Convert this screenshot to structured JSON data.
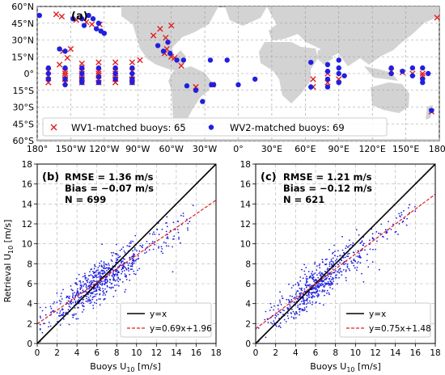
{
  "figure": {
    "panel_a_label": "(a)",
    "panel_b_label": "(b)",
    "panel_c_label": "(c)",
    "ylabel_scatter": "Retrieval U",
    "ylabel_sub": "10",
    "ylabel_unit": " [m/s]",
    "xlabel_scatter": "Buoys U",
    "xlabel_sub": "10",
    "xlabel_unit": " [m/s]"
  },
  "chart_data": [
    {
      "type": "scatter",
      "panel": "(a)",
      "map": true,
      "xlim": [
        -180,
        180
      ],
      "ylim": [
        -60,
        60
      ],
      "x_ticks": [
        "180°",
        "150°W",
        "120°W",
        "90°W",
        "60°W",
        "30°W",
        "0°",
        "30°E",
        "60°E",
        "90°E",
        "120°E",
        "150°E",
        "180°"
      ],
      "y_ticks": [
        "60°N",
        "45°N",
        "30°N",
        "15°N",
        "0°",
        "15°S",
        "30°S",
        "45°S",
        "60°S"
      ],
      "grid": true,
      "legend_position": "bottom",
      "series": [
        {
          "name": "WV1-matched buoys: 65",
          "marker": "x",
          "color": "#e02020",
          "points": [
            [
              -163,
              53
            ],
            [
              -158,
              51
            ],
            [
              -145,
              48
            ],
            [
              -136,
              46
            ],
            [
              -150,
              22
            ],
            [
              -153,
              14
            ],
            [
              -131,
              44
            ],
            [
              -124,
              44
            ],
            [
              -60,
              43
            ],
            [
              -70,
              40
            ],
            [
              -76,
              34
            ],
            [
              -65,
              32
            ],
            [
              -157,
              20
            ],
            [
              -160,
              8
            ],
            [
              -140,
              9
            ],
            [
              -125,
              10
            ],
            [
              -110,
              10
            ],
            [
              -95,
              10
            ],
            [
              -88,
              12
            ],
            [
              -170,
              2
            ],
            [
              -155,
              2
            ],
            [
              -140,
              2
            ],
            [
              -125,
              2
            ],
            [
              -110,
              2
            ],
            [
              -95,
              2
            ],
            [
              -170,
              -2
            ],
            [
              -155,
              -2
            ],
            [
              -140,
              -2
            ],
            [
              -125,
              -2
            ],
            [
              -110,
              -2
            ],
            [
              -95,
              -2
            ],
            [
              -155,
              -5
            ],
            [
              -140,
              -5
            ],
            [
              -125,
              -5
            ],
            [
              -110,
              -5
            ],
            [
              -95,
              -5
            ],
            [
              -140,
              -8
            ],
            [
              -125,
              -8
            ],
            [
              -110,
              -8
            ],
            [
              -95,
              -8
            ],
            [
              -155,
              -8
            ],
            [
              -170,
              -8
            ],
            [
              -155,
              0
            ],
            [
              -140,
              0
            ],
            [
              -125,
              0
            ],
            [
              -110,
              0
            ],
            [
              -66,
              18
            ],
            [
              -60,
              15
            ],
            [
              -64,
              22
            ],
            [
              -57,
              14
            ],
            [
              -51,
              7
            ],
            [
              -38,
              -12
            ],
            [
              -23,
              -10
            ],
            [
              67,
              -5
            ],
            [
              67,
              -12
            ],
            [
              80,
              0
            ],
            [
              80,
              -8
            ],
            [
              90,
              -5
            ],
            [
              137,
              2
            ],
            [
              147,
              1
            ],
            [
              156,
              0
            ],
            [
              165,
              0
            ],
            [
              165,
              -2
            ],
            [
              173,
              -34
            ],
            [
              178,
              50
            ]
          ]
        },
        {
          "name": "WV2-matched buoys: 69",
          "marker": "o",
          "color": "#2020e0",
          "points": [
            [
              -178,
              52
            ],
            [
              -160,
              22
            ],
            [
              -155,
              20
            ],
            [
              -148,
              49
            ],
            [
              -140,
              49
            ],
            [
              -138,
              43
            ],
            [
              -134,
              52
            ],
            [
              -130,
              49
            ],
            [
              -127,
              40
            ],
            [
              -125,
              45
            ],
            [
              -123,
              38
            ],
            [
              -120,
              36
            ],
            [
              -170,
              5
            ],
            [
              -170,
              0
            ],
            [
              -170,
              -5
            ],
            [
              -155,
              5
            ],
            [
              -155,
              -5
            ],
            [
              -155,
              -10
            ],
            [
              -140,
              5
            ],
            [
              -140,
              0
            ],
            [
              -140,
              -5
            ],
            [
              -140,
              -8
            ],
            [
              -125,
              5
            ],
            [
              -125,
              -3
            ],
            [
              -125,
              -8
            ],
            [
              -110,
              5
            ],
            [
              -110,
              0
            ],
            [
              -110,
              -5
            ],
            [
              -95,
              5
            ],
            [
              -95,
              0
            ],
            [
              -95,
              -5
            ],
            [
              -95,
              -8
            ],
            [
              -72,
              25
            ],
            [
              -67,
              20
            ],
            [
              -63,
              28
            ],
            [
              -61,
              18
            ],
            [
              -55,
              12
            ],
            [
              -49,
              12
            ],
            [
              -46,
              -11
            ],
            [
              -38,
              -15
            ],
            [
              -32,
              -25
            ],
            [
              -25,
              12
            ],
            [
              -23,
              -10
            ],
            [
              -24,
              -10
            ],
            [
              -22,
              -10
            ],
            [
              -10,
              12
            ],
            [
              0,
              -10
            ],
            [
              15,
              -5
            ],
            [
              65,
              10
            ],
            [
              65,
              -12
            ],
            [
              80,
              8
            ],
            [
              80,
              2
            ],
            [
              80,
              -5
            ],
            [
              80,
              -12
            ],
            [
              90,
              12
            ],
            [
              90,
              5
            ],
            [
              90,
              0
            ],
            [
              90,
              -8
            ],
            [
              95,
              -2
            ],
            [
              137,
              5
            ],
            [
              137,
              0
            ],
            [
              147,
              2
            ],
            [
              156,
              5
            ],
            [
              156,
              -2
            ],
            [
              165,
              5
            ],
            [
              165,
              -5
            ],
            [
              165,
              -8
            ],
            [
              170,
              0
            ],
            [
              173,
              -33
            ]
          ]
        }
      ]
    },
    {
      "type": "scatter",
      "panel": "(b)",
      "xlabel": "Buoys U10 [m/s]",
      "ylabel": "Retrieval U10 [m/s]",
      "xlim": [
        0,
        18
      ],
      "ylim": [
        0,
        18
      ],
      "x_ticks": [
        "0",
        "2",
        "4",
        "6",
        "8",
        "10",
        "12",
        "14",
        "16",
        "18"
      ],
      "y_ticks": [
        "0",
        "2",
        "4",
        "6",
        "8",
        "10",
        "12",
        "14",
        "16",
        "18"
      ],
      "grid": true,
      "legend_position": "bottom-right",
      "stats": [
        "RMSE = 1.36 m/s",
        "Bias = −0.07 m/s",
        "N = 699"
      ],
      "n_points": 699,
      "scatter_color": "#1f1fe0",
      "fit": {
        "slope": 0.69,
        "intercept": 1.96
      },
      "lines": [
        {
          "name": "y=x",
          "color": "#000000",
          "style": "solid"
        },
        {
          "name": "y=0.69x+1.96",
          "color": "#e02020",
          "style": "dashed"
        }
      ]
    },
    {
      "type": "scatter",
      "panel": "(c)",
      "xlabel": "Buoys U10 [m/s]",
      "ylabel": "",
      "xlim": [
        0,
        18
      ],
      "ylim": [
        0,
        18
      ],
      "x_ticks": [
        "0",
        "2",
        "4",
        "6",
        "8",
        "10",
        "12",
        "14",
        "16",
        "18"
      ],
      "y_ticks": [
        "0",
        "2",
        "4",
        "6",
        "8",
        "10",
        "12",
        "14",
        "16",
        "18"
      ],
      "grid": true,
      "legend_position": "bottom-right",
      "stats": [
        "RMSE = 1.21 m/s",
        "Bias = −0.12 m/s",
        "N = 621"
      ],
      "n_points": 621,
      "scatter_color": "#1f1fe0",
      "fit": {
        "slope": 0.75,
        "intercept": 1.48
      },
      "lines": [
        {
          "name": "y=x",
          "color": "#000000",
          "style": "solid"
        },
        {
          "name": "y=0.75x+1.48",
          "color": "#e02020",
          "style": "dashed"
        }
      ]
    }
  ]
}
